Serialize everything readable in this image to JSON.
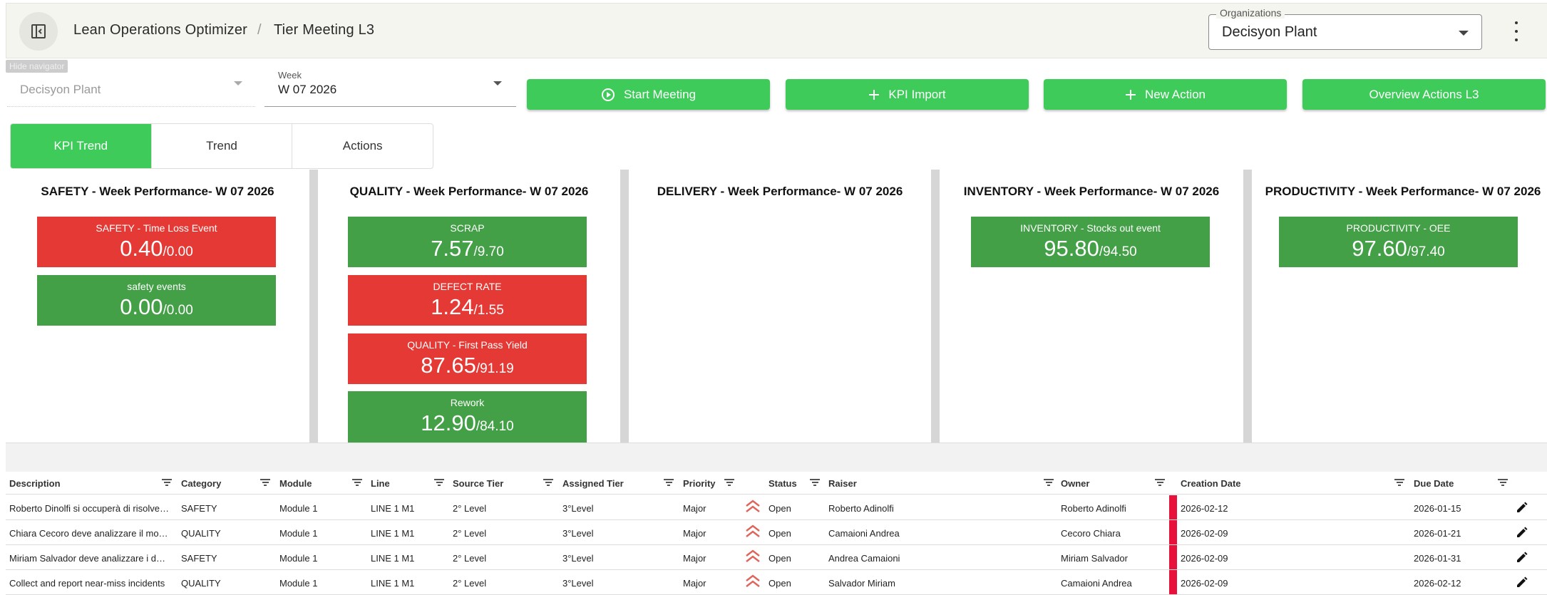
{
  "header": {
    "app_name": "Lean Operations Optimizer",
    "separator": "/",
    "page": "Tier Meeting L3",
    "org_label": "Organizations",
    "org_value": "Decisyon Plant",
    "tooltip": "Hide navigator"
  },
  "filters": {
    "plant_value": "Decisyon Plant",
    "week_label": "Week",
    "week_value": "W 07 2026"
  },
  "actions": {
    "start_meeting": "Start Meeting",
    "kpi_import": "KPI Import",
    "new_action": "New Action",
    "overview": "Overview Actions L3"
  },
  "tabs": [
    "KPI Trend",
    "Trend",
    "Actions"
  ],
  "panels": [
    {
      "title": "SAFETY - Week Performance- W 07 2026",
      "kpis": [
        {
          "name": "SAFETY - Time Loss Event",
          "value": "0.40",
          "target": "/0.00",
          "status": "red"
        },
        {
          "name": "safety events",
          "value": "0.00",
          "target": "/0.00",
          "status": "green"
        }
      ]
    },
    {
      "title": "QUALITY - Week Performance- W 07 2026",
      "kpis": [
        {
          "name": "SCRAP",
          "value": "7.57",
          "target": "/9.70",
          "status": "green"
        },
        {
          "name": "DEFECT RATE",
          "value": "1.24",
          "target": "/1.55",
          "status": "red"
        },
        {
          "name": "QUALITY - First Pass Yield",
          "value": "87.65",
          "target": "/91.19",
          "status": "red"
        },
        {
          "name": "Rework",
          "value": "12.90",
          "target": "/84.10",
          "status": "green"
        }
      ]
    },
    {
      "title": "DELIVERY - Week Performance- W 07 2026",
      "kpis": []
    },
    {
      "title": "INVENTORY - Week Performance- W 07 2026",
      "kpis": [
        {
          "name": "INVENTORY - Stocks out event",
          "value": "95.80",
          "target": "/94.50",
          "status": "green"
        }
      ]
    },
    {
      "title": "PRODUCTIVITY - Week Performance- W 07 2026",
      "kpis": [
        {
          "name": "PRODUCTIVITY - OEE",
          "value": "97.60",
          "target": "/97.40",
          "status": "green"
        }
      ]
    }
  ],
  "table": {
    "columns": [
      "Description",
      "Category",
      "Module",
      "Line",
      "Source Tier",
      "Assigned Tier",
      "Priority",
      "Status",
      "Raiser",
      "Owner",
      "Creation Date",
      "Due Date"
    ],
    "rows": [
      [
        "Roberto Dinolfi si occuperà di risolvere il problema",
        "SAFETY",
        "Module 1",
        "LINE 1 M1",
        "2° Level",
        "3°Level",
        "Major",
        "Open",
        "Roberto Adinolfi",
        "Roberto Adinolfi",
        "2026-02-12",
        "2026-01-15"
      ],
      [
        "Chiara Cecoro deve analizzare il motivo",
        "QUALITY",
        "Module 1",
        "LINE 1 M1",
        "2° Level",
        "3°Level",
        "Major",
        "Open",
        "Camaioni Andrea",
        "Cecoro Chiara",
        "2026-02-09",
        "2026-01-21"
      ],
      [
        "Miriam Salvador deve analizzare i dati di scarto",
        "SAFETY",
        "Module 1",
        "LINE 1 M1",
        "2° Level",
        "3°Level",
        "Major",
        "Open",
        "Andrea Camaioni",
        "Miriam Salvador",
        "2026-02-09",
        "2026-01-31"
      ],
      [
        "Collect and report near-miss incidents",
        "QUALITY",
        "Module 1",
        "LINE 1 M1",
        "2° Level",
        "3°Level",
        "Major",
        "Open",
        "Salvador Miriam",
        "Camaioni Andrea",
        "2026-02-09",
        "2026-02-12"
      ]
    ]
  },
  "colors": {
    "accent_green": "#3ecb5a",
    "kpi_red": "#e53935",
    "kpi_green": "#43a047",
    "priority_red": "#e8113c"
  }
}
